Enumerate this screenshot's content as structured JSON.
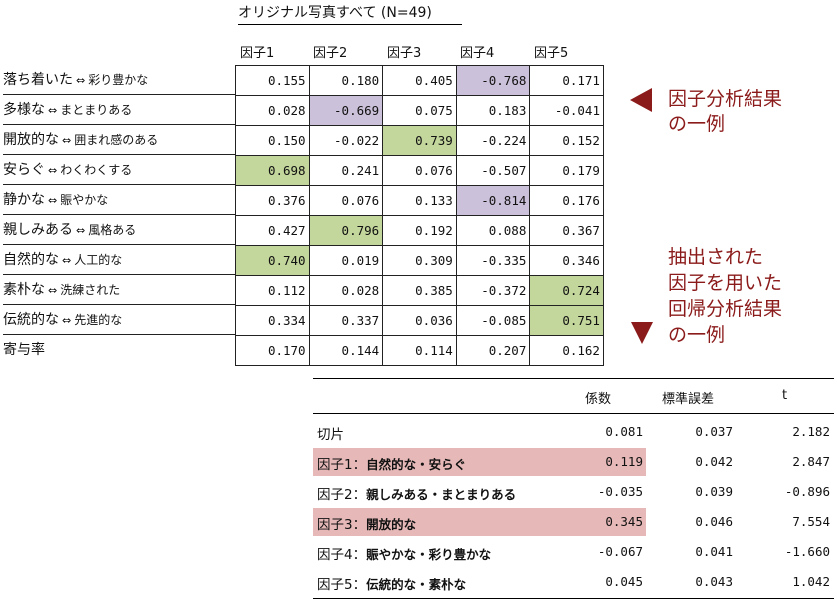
{
  "factor_table": {
    "title": "オリジナル写真すべて (N=49)",
    "columns": [
      "因子1",
      "因子2",
      "因子3",
      "因子4",
      "因子5"
    ],
    "rows": [
      {
        "left": "落ち着いた",
        "arrow": "⇔",
        "right": "彩り豊かな",
        "values": [
          "0.155",
          "0.180",
          "0.405",
          "-0.768",
          "0.171"
        ],
        "highlight": [
          null,
          null,
          null,
          "purple",
          null
        ]
      },
      {
        "left": "多様な",
        "arrow": "⇔",
        "right": "まとまりある",
        "values": [
          "0.028",
          "-0.669",
          "0.075",
          "0.183",
          "-0.041"
        ],
        "highlight": [
          null,
          "purple",
          null,
          null,
          null
        ]
      },
      {
        "left": "開放的な",
        "arrow": "⇔",
        "right": "囲まれ感のある",
        "values": [
          "0.150",
          "-0.022",
          "0.739",
          "-0.224",
          "0.152"
        ],
        "highlight": [
          null,
          null,
          "green",
          null,
          null
        ]
      },
      {
        "left": "安らぐ",
        "arrow": "⇔",
        "right": "わくわくする",
        "values": [
          "0.698",
          "0.241",
          "0.076",
          "-0.507",
          "0.179"
        ],
        "highlight": [
          "green",
          null,
          null,
          null,
          null
        ]
      },
      {
        "left": "静かな",
        "arrow": "⇔",
        "right": "賑やかな",
        "values": [
          "0.376",
          "0.076",
          "0.133",
          "-0.814",
          "0.176"
        ],
        "highlight": [
          null,
          null,
          null,
          "purple",
          null
        ]
      },
      {
        "left": "親しみある",
        "arrow": "⇔",
        "right": "風格ある",
        "values": [
          "0.427",
          "0.796",
          "0.192",
          "0.088",
          "0.367"
        ],
        "highlight": [
          null,
          "green",
          null,
          null,
          null
        ]
      },
      {
        "left": "自然的な",
        "arrow": "⇔",
        "right": "人工的な",
        "values": [
          "0.740",
          "0.019",
          "0.309",
          "-0.335",
          "0.346"
        ],
        "highlight": [
          "green",
          null,
          null,
          null,
          null
        ]
      },
      {
        "left": "素朴な",
        "arrow": "⇔",
        "right": "洗練された",
        "values": [
          "0.112",
          "0.028",
          "0.385",
          "-0.372",
          "0.724"
        ],
        "highlight": [
          null,
          null,
          null,
          null,
          "green"
        ]
      },
      {
        "left": "伝統的な",
        "arrow": "⇔",
        "right": "先進的な",
        "values": [
          "0.334",
          "0.337",
          "0.036",
          "-0.085",
          "0.751"
        ],
        "highlight": [
          null,
          null,
          null,
          null,
          "green"
        ]
      }
    ],
    "contribution": {
      "label": "寄与率",
      "values": [
        "0.170",
        "0.144",
        "0.114",
        "0.207",
        "0.162"
      ]
    }
  },
  "annotations": {
    "factor_note": [
      "因子分析結果",
      "の一例"
    ],
    "regression_note": [
      "抽出された",
      "因子を用いた",
      "回帰分析結果",
      "の一例"
    ]
  },
  "regression_table": {
    "headers": [
      "係数",
      "標準誤差",
      "t"
    ],
    "rows": [
      {
        "label_prefix": "切片",
        "label_bold": "",
        "coef": "0.081",
        "se": "0.037",
        "t": "2.182",
        "highlight": false
      },
      {
        "label_prefix": "因子1：",
        "label_bold": "自然的な・安らぐ",
        "coef": "0.119",
        "se": "0.042",
        "t": "2.847",
        "highlight": true
      },
      {
        "label_prefix": "因子2：",
        "label_bold": "親しみある・まとまりある",
        "coef": "-0.035",
        "se": "0.039",
        "t": "-0.896",
        "highlight": false
      },
      {
        "label_prefix": "因子3：",
        "label_bold": "開放的な",
        "coef": "0.345",
        "se": "0.046",
        "t": "7.554",
        "highlight": true
      },
      {
        "label_prefix": "因子4：",
        "label_bold": "賑やかな・彩り豊かな",
        "coef": "-0.067",
        "se": "0.041",
        "t": "-1.660",
        "highlight": false
      },
      {
        "label_prefix": "因子5：",
        "label_bold": "伝統的な・素朴な",
        "coef": "0.045",
        "se": "0.043",
        "t": "1.042",
        "highlight": false
      }
    ]
  },
  "colors": {
    "green_highlight": "#c3d69b",
    "purple_highlight": "#ccc1da",
    "pink_highlight": "#e6b9b8",
    "annotation": "#8b1a1a"
  }
}
